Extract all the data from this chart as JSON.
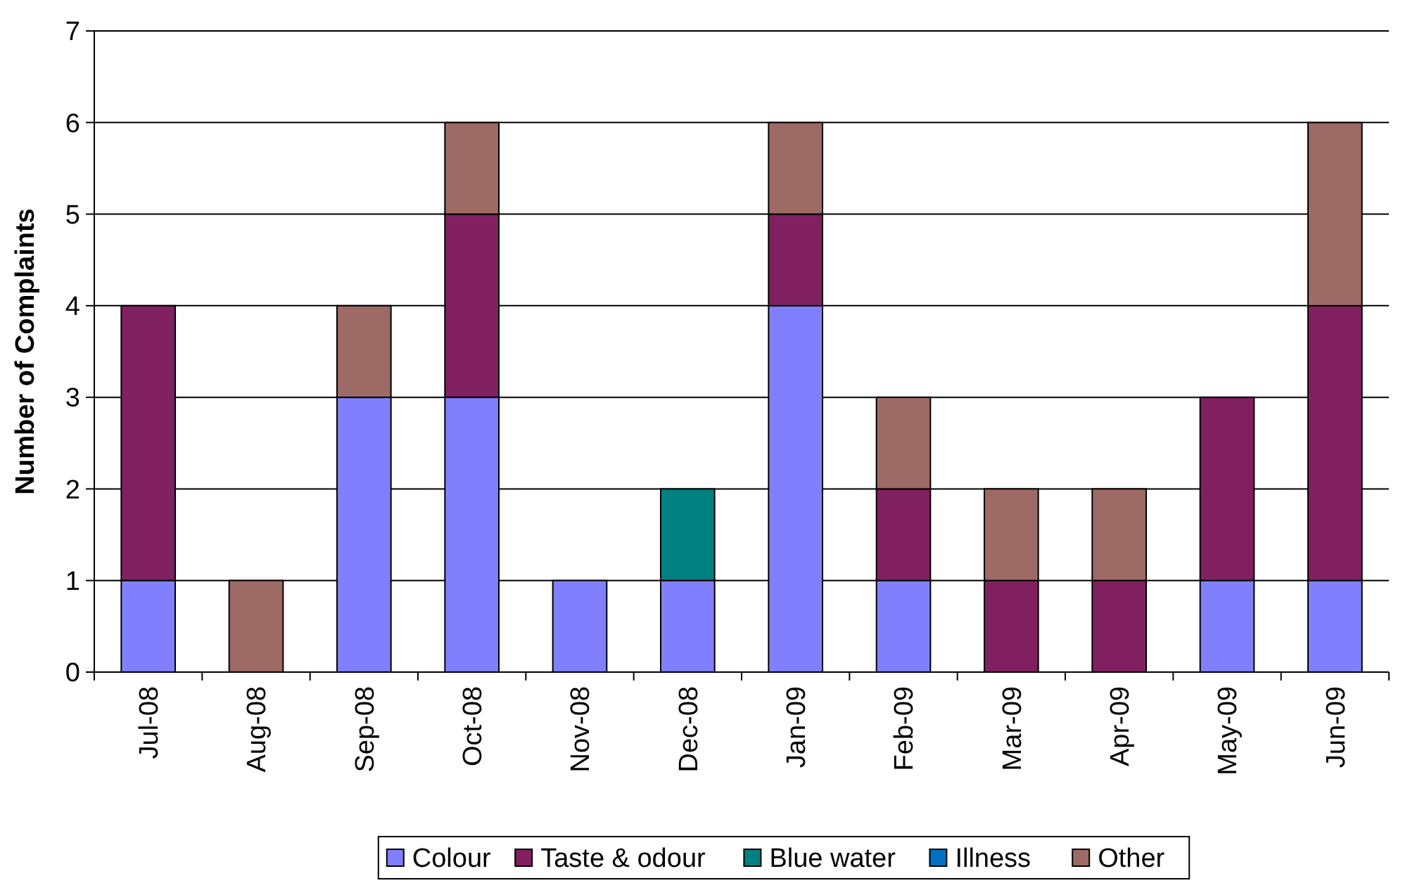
{
  "chart_data": {
    "type": "bar",
    "stacked": true,
    "ylabel": "Number of Complaints",
    "categories": [
      "Jul-08",
      "Aug-08",
      "Sep-08",
      "Oct-08",
      "Nov-08",
      "Dec-08",
      "Jan-09",
      "Feb-09",
      "Mar-09",
      "Apr-09",
      "May-09",
      "Jun-09"
    ],
    "series": [
      {
        "name": "Colour",
        "color": "#8080ff",
        "values": [
          1,
          0,
          3,
          3,
          1,
          1,
          4,
          1,
          0,
          0,
          1,
          1
        ]
      },
      {
        "name": "Taste & odour",
        "color": "#802060",
        "values": [
          3,
          0,
          0,
          2,
          0,
          0,
          1,
          1,
          1,
          1,
          2,
          3
        ]
      },
      {
        "name": "Blue water",
        "color": "#008080",
        "values": [
          0,
          0,
          0,
          0,
          0,
          1,
          0,
          0,
          0,
          0,
          0,
          0
        ]
      },
      {
        "name": "Illness",
        "color": "#0070c0",
        "values": [
          0,
          0,
          0,
          0,
          0,
          0,
          0,
          0,
          0,
          0,
          0,
          0
        ]
      },
      {
        "name": "Other",
        "color": "#9e6a66",
        "values": [
          0,
          1,
          1,
          1,
          0,
          0,
          1,
          1,
          1,
          1,
          0,
          2
        ]
      }
    ],
    "ylim": [
      0,
      7
    ],
    "yticks": [
      0,
      1,
      2,
      3,
      4,
      5,
      6,
      7
    ],
    "grid": "y",
    "legend": "bottom"
  }
}
